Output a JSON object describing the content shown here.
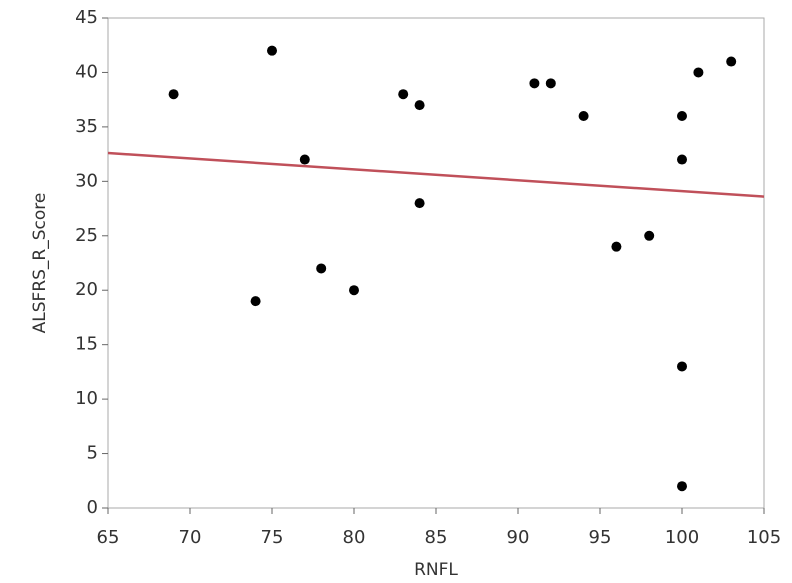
{
  "chart_data": {
    "type": "scatter",
    "x": [
      69,
      74,
      75,
      77,
      78,
      80,
      83,
      84,
      84,
      91,
      92,
      94,
      96,
      98,
      100,
      100,
      100,
      100,
      101,
      103
    ],
    "values": [
      38,
      19,
      42,
      32,
      22,
      20,
      38,
      37,
      28,
      39,
      39,
      36,
      24,
      25,
      36,
      32,
      13,
      2,
      40,
      41
    ],
    "color": "#000000",
    "fit_line": {
      "x": [
        65,
        105
      ],
      "values": [
        32.6,
        28.6
      ],
      "color": "#c0505a"
    },
    "x_label": "RNFL",
    "y_label": "ALSFRS_R_Score",
    "xlim": [
      65,
      105
    ],
    "xticks": [
      65,
      70,
      75,
      80,
      85,
      90,
      95,
      100,
      105
    ],
    "ylim": [
      0,
      45
    ],
    "yticks": [
      0,
      5,
      10,
      15,
      20,
      25,
      30,
      35,
      40,
      45
    ],
    "grid": false
  }
}
